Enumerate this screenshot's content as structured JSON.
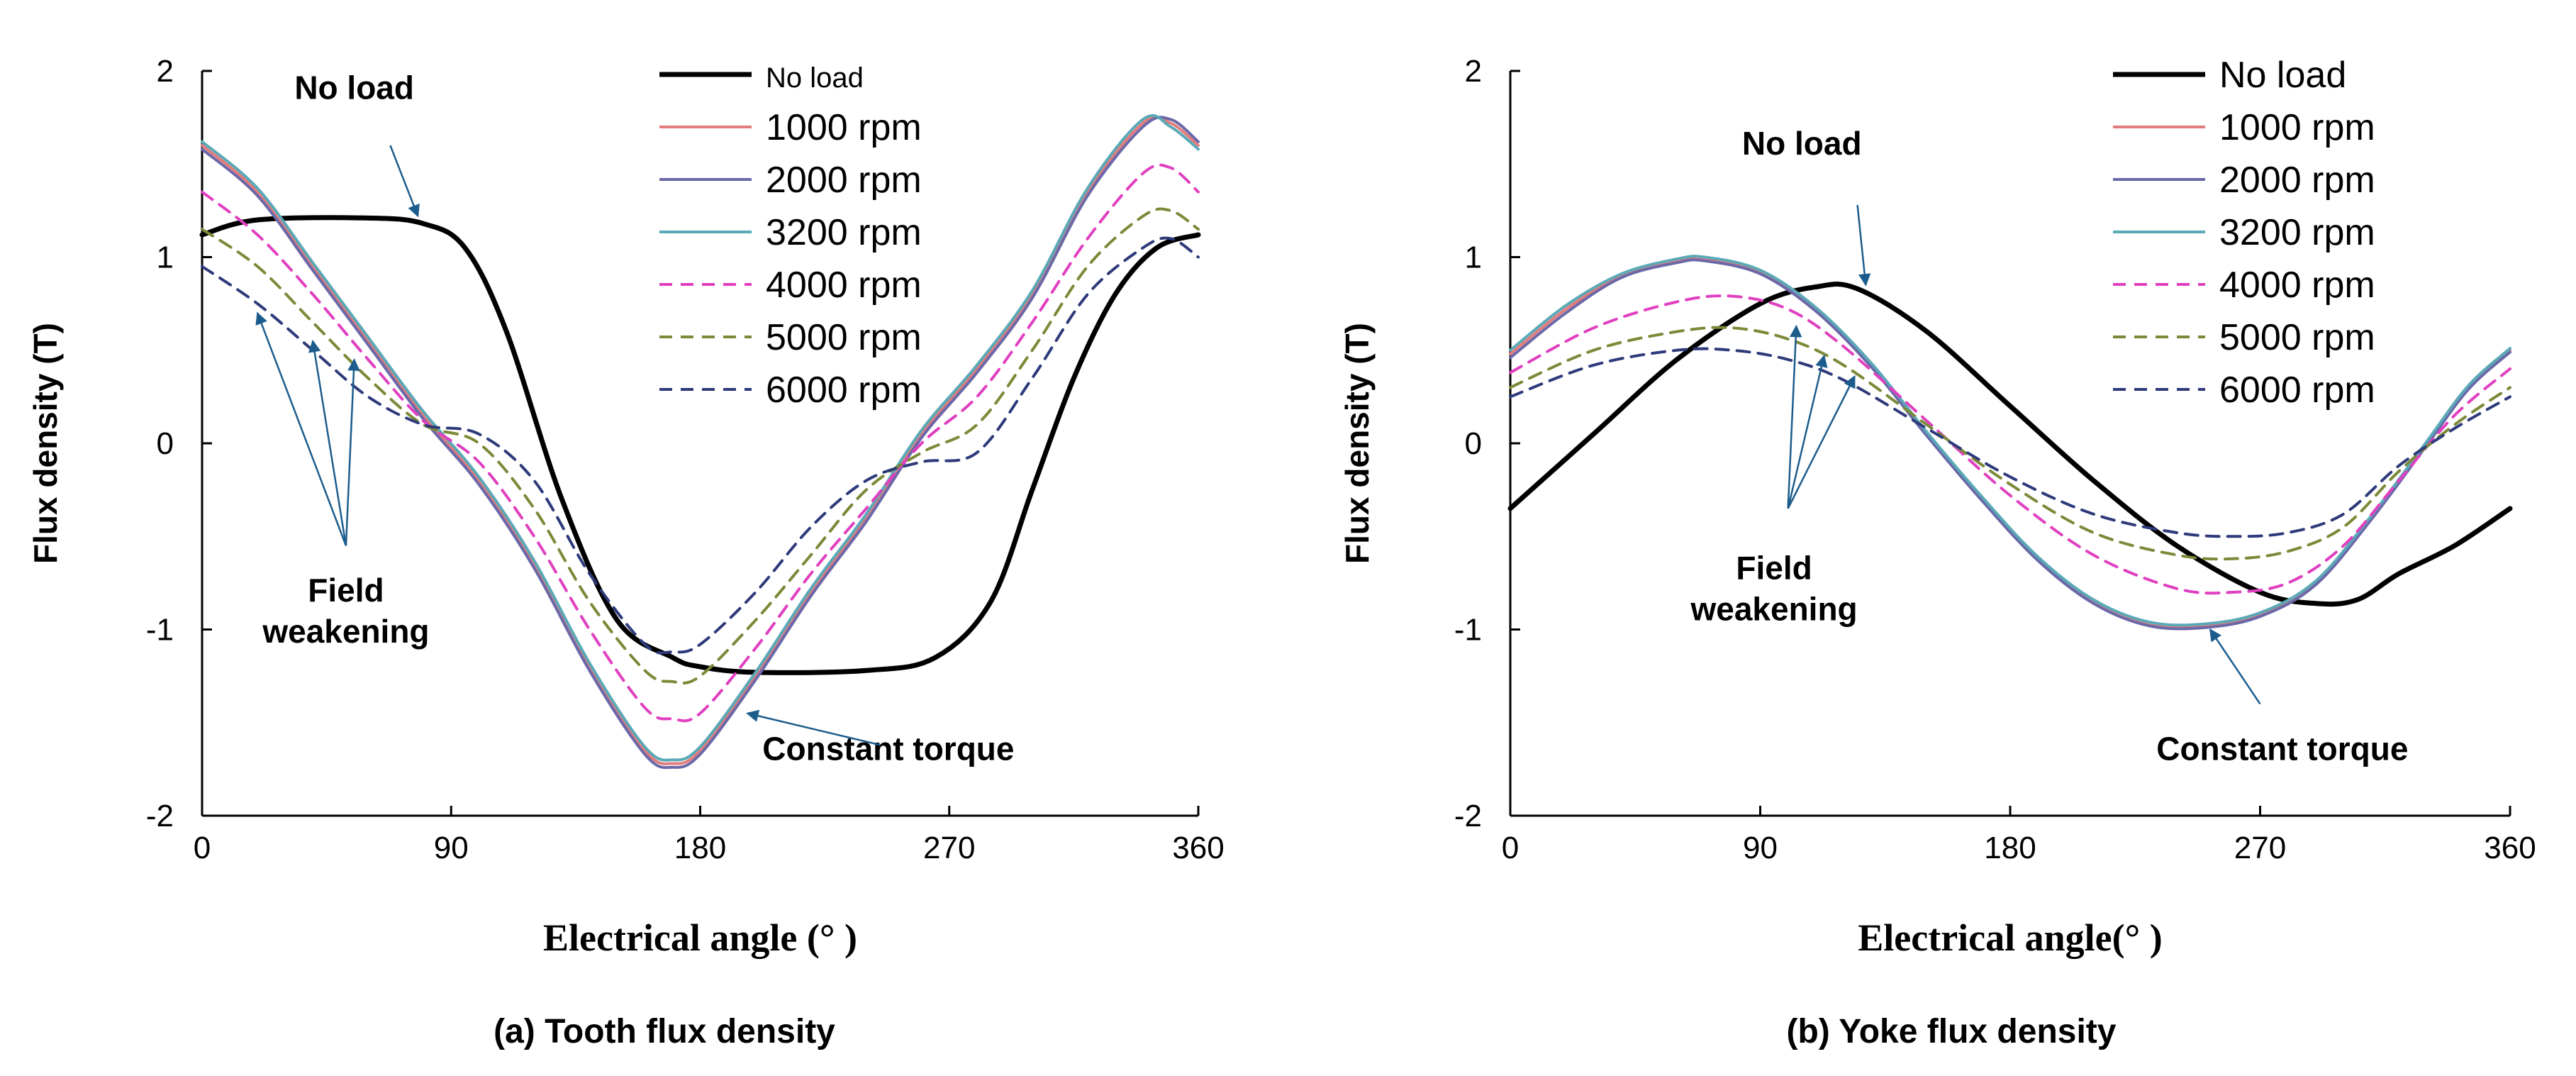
{
  "colors": {
    "no_load": "#000000",
    "rpm1000": "#e37c7c",
    "rpm2000": "#6a68a8",
    "rpm3200": "#5aa9b7",
    "rpm4000": "#e040c0",
    "rpm5000": "#7a8a38",
    "rpm6000": "#2e3a7a",
    "arrow": "#1c5c8c"
  },
  "chart_data": [
    {
      "type": "line",
      "caption": "(a) Tooth flux density",
      "xlabel": "Electrical angle (° )",
      "ylabel": "Flux density (T)",
      "xlim": [
        0,
        360
      ],
      "ylim": [
        -2,
        2
      ],
      "xticks": [
        0,
        90,
        180,
        270,
        360
      ],
      "yticks": [
        2,
        1,
        0,
        -1,
        -2
      ],
      "legend_position": "top-center",
      "series": [
        {
          "name": "No load",
          "color_key": "no_load",
          "dash": "solid",
          "x": [
            0,
            20,
            60,
            80,
            95,
            110,
            130,
            150,
            170,
            180,
            200,
            240,
            265,
            285,
            300,
            315,
            330,
            345,
            360
          ],
          "y": [
            1.12,
            1.2,
            1.21,
            1.18,
            1.05,
            0.6,
            -0.3,
            -0.95,
            -1.15,
            -1.2,
            -1.23,
            -1.22,
            -1.15,
            -0.85,
            -0.25,
            0.35,
            0.8,
            1.05,
            1.12
          ]
        },
        {
          "name": "1000 rpm",
          "color_key": "rpm1000",
          "dash": "solid",
          "x": [
            0,
            20,
            40,
            60,
            80,
            100,
            120,
            140,
            160,
            170,
            180,
            200,
            220,
            240,
            260,
            280,
            300,
            320,
            340,
            350,
            360
          ],
          "y": [
            1.6,
            1.35,
            0.95,
            0.55,
            0.15,
            -0.2,
            -0.65,
            -1.2,
            -1.65,
            -1.72,
            -1.65,
            -1.25,
            -0.8,
            -0.4,
            0.05,
            0.4,
            0.8,
            1.35,
            1.72,
            1.72,
            1.6
          ]
        },
        {
          "name": "2000 rpm",
          "color_key": "rpm2000",
          "dash": "solid",
          "x": [
            0,
            20,
            40,
            60,
            80,
            100,
            120,
            140,
            160,
            170,
            180,
            200,
            220,
            240,
            260,
            280,
            300,
            320,
            340,
            350,
            360
          ],
          "y": [
            1.58,
            1.33,
            0.93,
            0.53,
            0.13,
            -0.22,
            -0.67,
            -1.22,
            -1.67,
            -1.74,
            -1.67,
            -1.27,
            -0.82,
            -0.42,
            0.03,
            0.38,
            0.78,
            1.33,
            1.7,
            1.74,
            1.62
          ]
        },
        {
          "name": "3200 rpm",
          "color_key": "rpm3200",
          "dash": "solid",
          "x": [
            0,
            20,
            40,
            60,
            80,
            100,
            120,
            140,
            160,
            170,
            180,
            200,
            220,
            240,
            260,
            280,
            300,
            320,
            340,
            350,
            360
          ],
          "y": [
            1.62,
            1.37,
            0.97,
            0.57,
            0.17,
            -0.18,
            -0.63,
            -1.18,
            -1.63,
            -1.7,
            -1.63,
            -1.23,
            -0.78,
            -0.38,
            0.07,
            0.42,
            0.82,
            1.37,
            1.74,
            1.7,
            1.58
          ]
        },
        {
          "name": "4000 rpm",
          "color_key": "rpm4000",
          "dash": "dashed",
          "x": [
            0,
            20,
            40,
            60,
            80,
            100,
            120,
            140,
            160,
            170,
            180,
            200,
            220,
            240,
            260,
            280,
            300,
            320,
            340,
            350,
            360
          ],
          "y": [
            1.35,
            1.12,
            0.8,
            0.45,
            0.12,
            -0.1,
            -0.5,
            -1.0,
            -1.42,
            -1.48,
            -1.45,
            -1.1,
            -0.7,
            -0.35,
            0.0,
            0.25,
            0.65,
            1.1,
            1.45,
            1.48,
            1.35
          ]
        },
        {
          "name": "5000 rpm",
          "color_key": "rpm5000",
          "dash": "dashed",
          "x": [
            0,
            20,
            40,
            60,
            80,
            100,
            120,
            140,
            160,
            170,
            180,
            200,
            220,
            240,
            260,
            280,
            300,
            320,
            340,
            350,
            360
          ],
          "y": [
            1.15,
            0.95,
            0.65,
            0.35,
            0.1,
            0.0,
            -0.35,
            -0.85,
            -1.22,
            -1.28,
            -1.25,
            -0.95,
            -0.6,
            -0.25,
            -0.05,
            0.1,
            0.5,
            0.95,
            1.22,
            1.25,
            1.15
          ]
        },
        {
          "name": "6000 rpm",
          "color_key": "rpm6000",
          "dash": "dashed",
          "x": [
            0,
            20,
            40,
            60,
            80,
            100,
            120,
            140,
            160,
            170,
            180,
            200,
            220,
            240,
            260,
            280,
            300,
            320,
            340,
            350,
            360
          ],
          "y": [
            0.95,
            0.75,
            0.5,
            0.25,
            0.1,
            0.05,
            -0.2,
            -0.7,
            -1.08,
            -1.12,
            -1.08,
            -0.8,
            -0.45,
            -0.2,
            -0.1,
            -0.05,
            0.35,
            0.8,
            1.05,
            1.1,
            1.0
          ]
        }
      ],
      "annotations": [
        {
          "id": "noload",
          "lines": [
            "No load"
          ],
          "x": 55,
          "y": 1.85,
          "arrow_from": [
            68,
            1.6
          ],
          "arrow_to": [
            78,
            1.22
          ]
        },
        {
          "id": "fw",
          "lines": [
            "Field",
            "weakening"
          ],
          "x": 52,
          "y": -0.85,
          "origin": [
            52,
            -0.55
          ],
          "targets": [
            [
              20,
              0.7
            ],
            [
              40,
              0.55
            ],
            [
              55,
              0.45
            ]
          ]
        },
        {
          "id": "ct",
          "lines": [
            "Constant torque"
          ],
          "x": 248,
          "y": -1.7,
          "arrow_from": [
            245,
            -1.62
          ],
          "arrow_to": [
            197,
            -1.45
          ]
        }
      ]
    },
    {
      "type": "line",
      "caption": "(b) Yoke flux density",
      "xlabel": "Electrical angle(° )",
      "ylabel": "Flux density (T)",
      "xlim": [
        0,
        360
      ],
      "ylim": [
        -2,
        2
      ],
      "xticks": [
        0,
        90,
        180,
        270,
        360
      ],
      "yticks": [
        2,
        1,
        0,
        -1,
        -2
      ],
      "legend_position": "top-right",
      "series": [
        {
          "name": "No load",
          "color_key": "no_load",
          "dash": "solid",
          "x": [
            0,
            30,
            60,
            90,
            110,
            125,
            150,
            180,
            210,
            240,
            270,
            290,
            305,
            320,
            340,
            360
          ],
          "y": [
            -0.35,
            0.05,
            0.45,
            0.75,
            0.84,
            0.83,
            0.6,
            0.2,
            -0.2,
            -0.55,
            -0.8,
            -0.86,
            -0.84,
            -0.7,
            -0.55,
            -0.35
          ]
        },
        {
          "name": "1000 rpm",
          "color_key": "rpm1000",
          "dash": "solid",
          "x": [
            0,
            20,
            40,
            60,
            70,
            90,
            110,
            130,
            150,
            170,
            190,
            210,
            230,
            250,
            270,
            290,
            310,
            330,
            345,
            360
          ],
          "y": [
            0.48,
            0.72,
            0.9,
            0.98,
            0.99,
            0.92,
            0.72,
            0.42,
            0.05,
            -0.3,
            -0.62,
            -0.85,
            -0.97,
            -0.98,
            -0.92,
            -0.75,
            -0.4,
            0.0,
            0.3,
            0.5
          ]
        },
        {
          "name": "2000 rpm",
          "color_key": "rpm2000",
          "dash": "solid",
          "x": [
            0,
            20,
            40,
            60,
            70,
            90,
            110,
            130,
            150,
            170,
            190,
            210,
            230,
            250,
            270,
            290,
            310,
            330,
            345,
            360
          ],
          "y": [
            0.46,
            0.7,
            0.89,
            0.97,
            0.98,
            0.91,
            0.71,
            0.41,
            0.04,
            -0.31,
            -0.63,
            -0.86,
            -0.98,
            -0.99,
            -0.93,
            -0.76,
            -0.41,
            -0.01,
            0.29,
            0.49
          ]
        },
        {
          "name": "3200 rpm",
          "color_key": "rpm3200",
          "dash": "solid",
          "x": [
            0,
            20,
            40,
            60,
            70,
            90,
            110,
            130,
            150,
            170,
            190,
            210,
            230,
            250,
            270,
            290,
            310,
            330,
            345,
            360
          ],
          "y": [
            0.5,
            0.74,
            0.91,
            0.99,
            1.0,
            0.93,
            0.73,
            0.43,
            0.06,
            -0.29,
            -0.61,
            -0.84,
            -0.96,
            -0.97,
            -0.91,
            -0.74,
            -0.39,
            0.01,
            0.31,
            0.51
          ]
        },
        {
          "name": "4000 rpm",
          "color_key": "rpm4000",
          "dash": "dashed",
          "x": [
            0,
            30,
            60,
            80,
            100,
            120,
            150,
            180,
            210,
            240,
            260,
            280,
            300,
            320,
            340,
            360
          ],
          "y": [
            0.38,
            0.62,
            0.76,
            0.79,
            0.72,
            0.52,
            0.12,
            -0.28,
            -0.6,
            -0.78,
            -0.8,
            -0.75,
            -0.55,
            -0.2,
            0.15,
            0.4
          ]
        },
        {
          "name": "5000 rpm",
          "color_key": "rpm5000",
          "dash": "dashed",
          "x": [
            0,
            30,
            60,
            80,
            100,
            120,
            150,
            180,
            210,
            240,
            260,
            280,
            300,
            320,
            340,
            360
          ],
          "y": [
            0.3,
            0.5,
            0.6,
            0.62,
            0.56,
            0.42,
            0.1,
            -0.22,
            -0.48,
            -0.6,
            -0.62,
            -0.58,
            -0.45,
            -0.15,
            0.1,
            0.3
          ]
        },
        {
          "name": "6000 rpm",
          "color_key": "rpm6000",
          "dash": "dashed",
          "x": [
            0,
            30,
            60,
            80,
            100,
            120,
            150,
            180,
            210,
            240,
            260,
            280,
            300,
            320,
            340,
            360
          ],
          "y": [
            0.25,
            0.42,
            0.5,
            0.5,
            0.45,
            0.34,
            0.08,
            -0.18,
            -0.38,
            -0.48,
            -0.5,
            -0.48,
            -0.38,
            -0.12,
            0.08,
            0.25
          ]
        }
      ],
      "annotations": [
        {
          "id": "noload",
          "lines": [
            "No load"
          ],
          "x": 105,
          "y": 1.55,
          "arrow_from": [
            125,
            1.28
          ],
          "arrow_to": [
            128,
            0.85
          ]
        },
        {
          "id": "fw",
          "lines": [
            "Field",
            "weakening"
          ],
          "x": 95,
          "y": -0.73,
          "origin": [
            100,
            -0.35
          ],
          "targets": [
            [
              103,
              0.63
            ],
            [
              113,
              0.47
            ],
            [
              124,
              0.36
            ]
          ]
        },
        {
          "id": "ct",
          "lines": [
            "Constant torque"
          ],
          "x": 278,
          "y": -1.7,
          "arrow_from": [
            270,
            -1.4
          ],
          "arrow_to": [
            252,
            -1.0
          ]
        }
      ]
    }
  ]
}
